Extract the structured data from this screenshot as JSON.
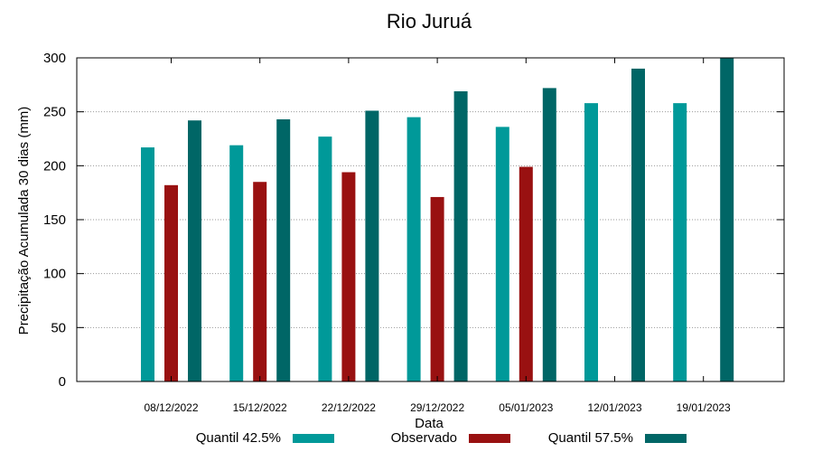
{
  "chart_data": {
    "type": "bar",
    "title": "Rio Juruá",
    "xlabel": "Data",
    "ylabel": "Precipitação Acumulada 30 dias (mm)",
    "ylim": [
      0,
      300
    ],
    "yticks": [
      0,
      50,
      100,
      150,
      200,
      250,
      300
    ],
    "grid": true,
    "legend_position": "bottom",
    "categories": [
      "08/12/2022",
      "15/12/2022",
      "22/12/2022",
      "29/12/2022",
      "05/01/2023",
      "12/01/2023",
      "19/01/2023"
    ],
    "series": [
      {
        "name": "Quantil 42.5%",
        "color": "#009999",
        "values": [
          217,
          219,
          227,
          245,
          236,
          258,
          258
        ]
      },
      {
        "name": "Observado",
        "color": "#991111",
        "values": [
          182,
          185,
          194,
          171,
          199,
          null,
          null
        ]
      },
      {
        "name": "Quantil 57.5%",
        "color": "#006666",
        "values": [
          242,
          243,
          251,
          269,
          272,
          290,
          300
        ]
      }
    ]
  }
}
